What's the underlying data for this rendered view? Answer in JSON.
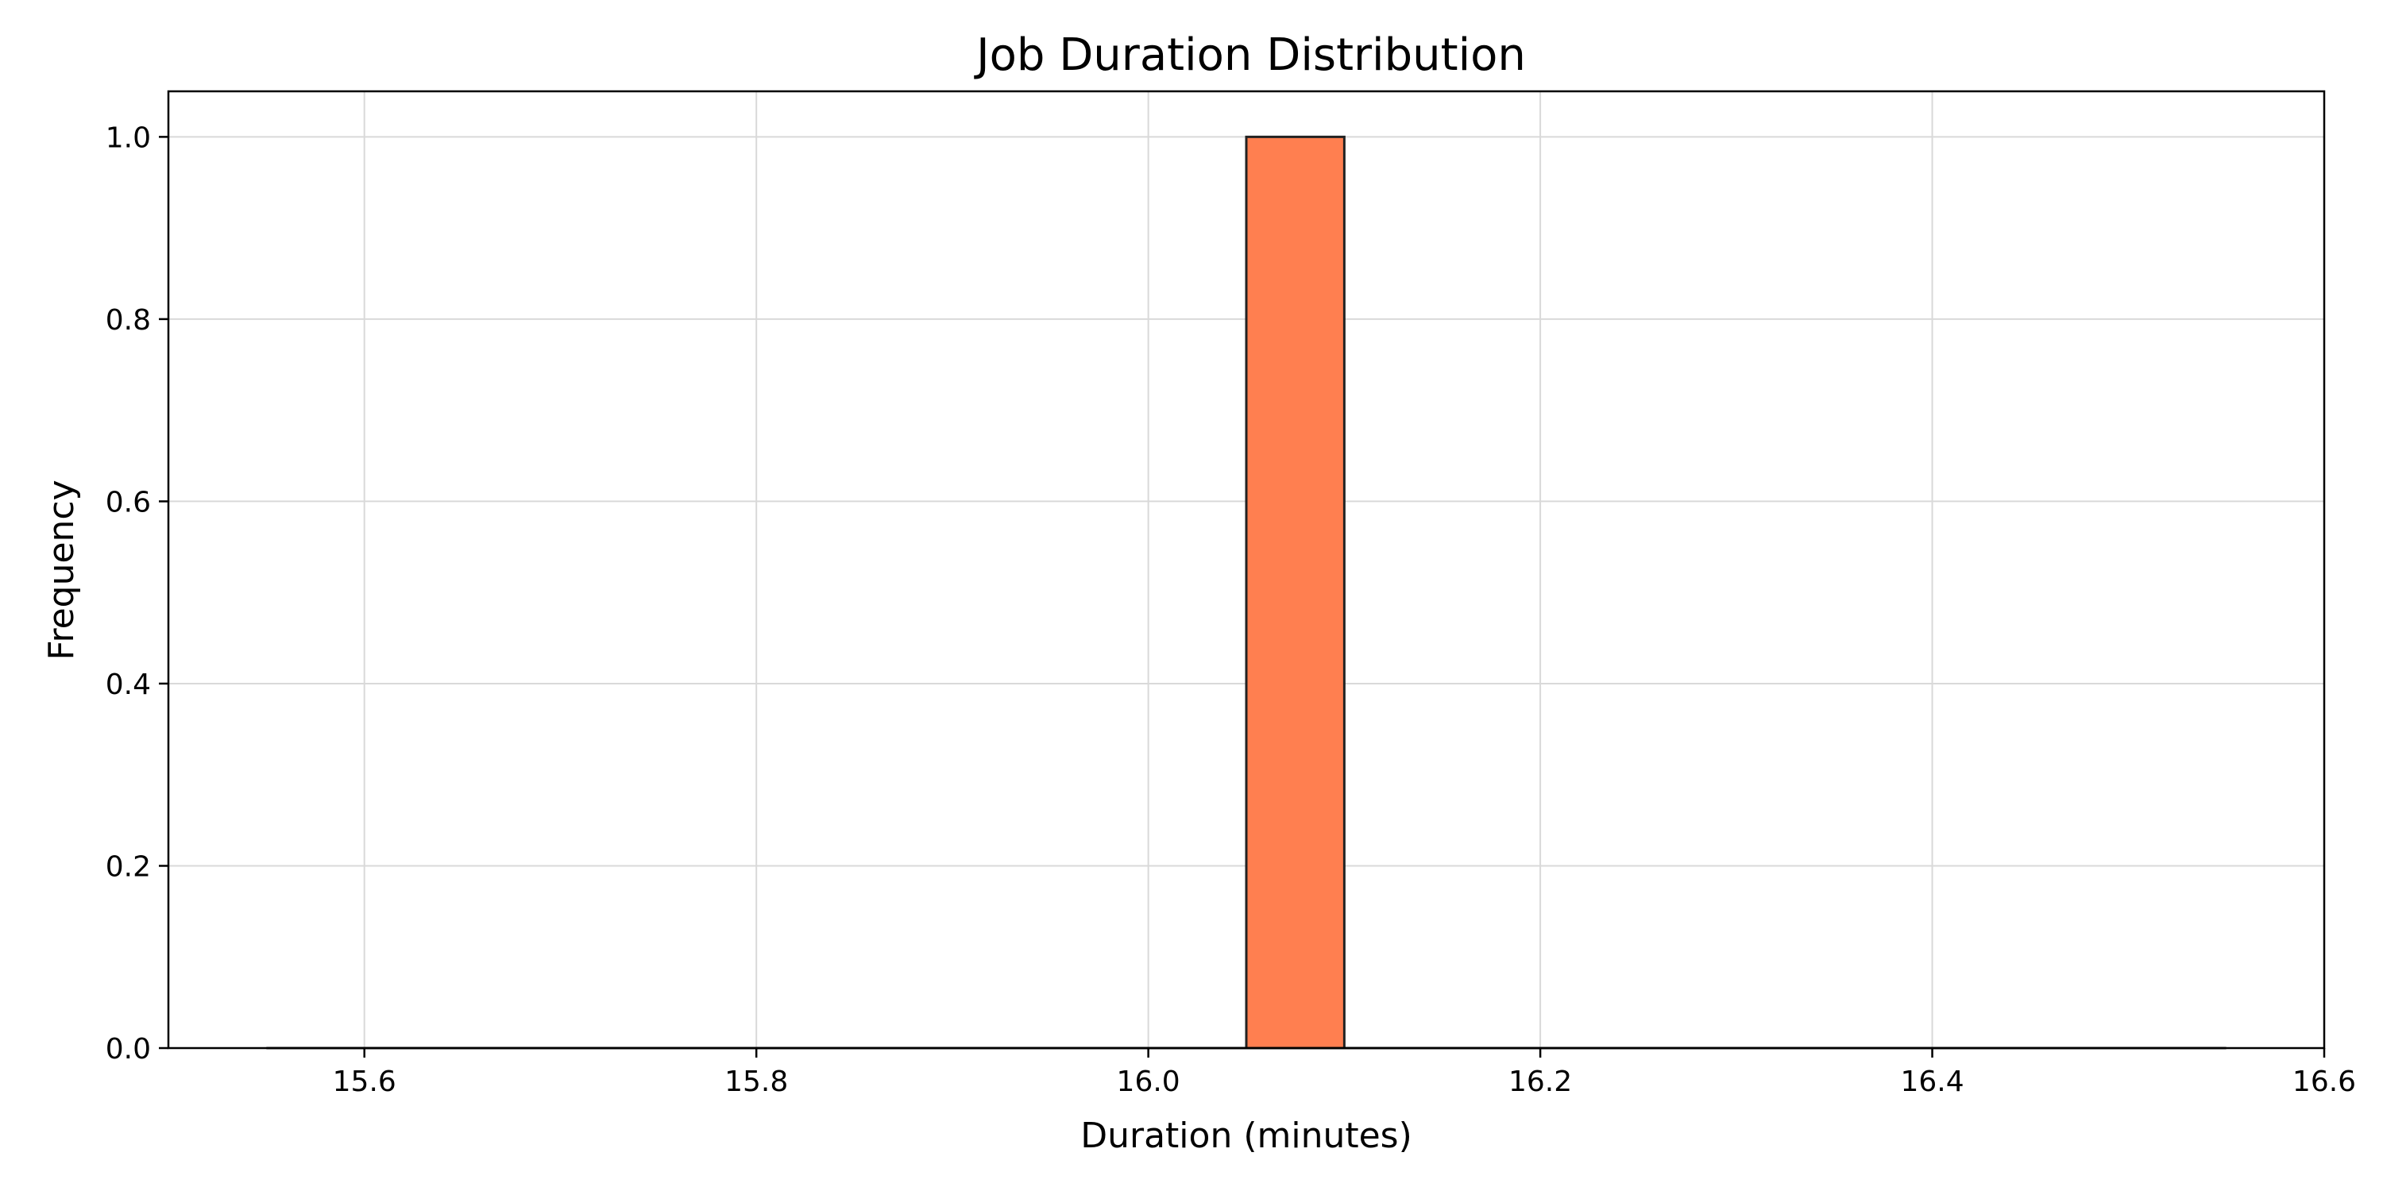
{
  "chart_data": {
    "type": "bar",
    "title": "Job Duration Distribution",
    "xlabel": "Duration (minutes)",
    "ylabel": "Frequency",
    "xlim": [
      15.5,
      16.6
    ],
    "ylim": [
      0,
      1.05
    ],
    "xticks": [
      "15.6",
      "15.8",
      "16.0",
      "16.2",
      "16.4",
      "16.6"
    ],
    "yticks": [
      "0.0",
      "0.2",
      "0.4",
      "0.6",
      "0.8",
      "1.0"
    ],
    "grid": true,
    "bin_range": [
      15.55,
      16.55
    ],
    "bin_width": 0.05,
    "bins": [
      {
        "x0": 16.05,
        "x1": 16.1,
        "count": 1
      }
    ],
    "colors": {
      "bar_fill": "#ff7f50",
      "bar_edge": "#222222",
      "grid": "#d9d9d9"
    }
  }
}
